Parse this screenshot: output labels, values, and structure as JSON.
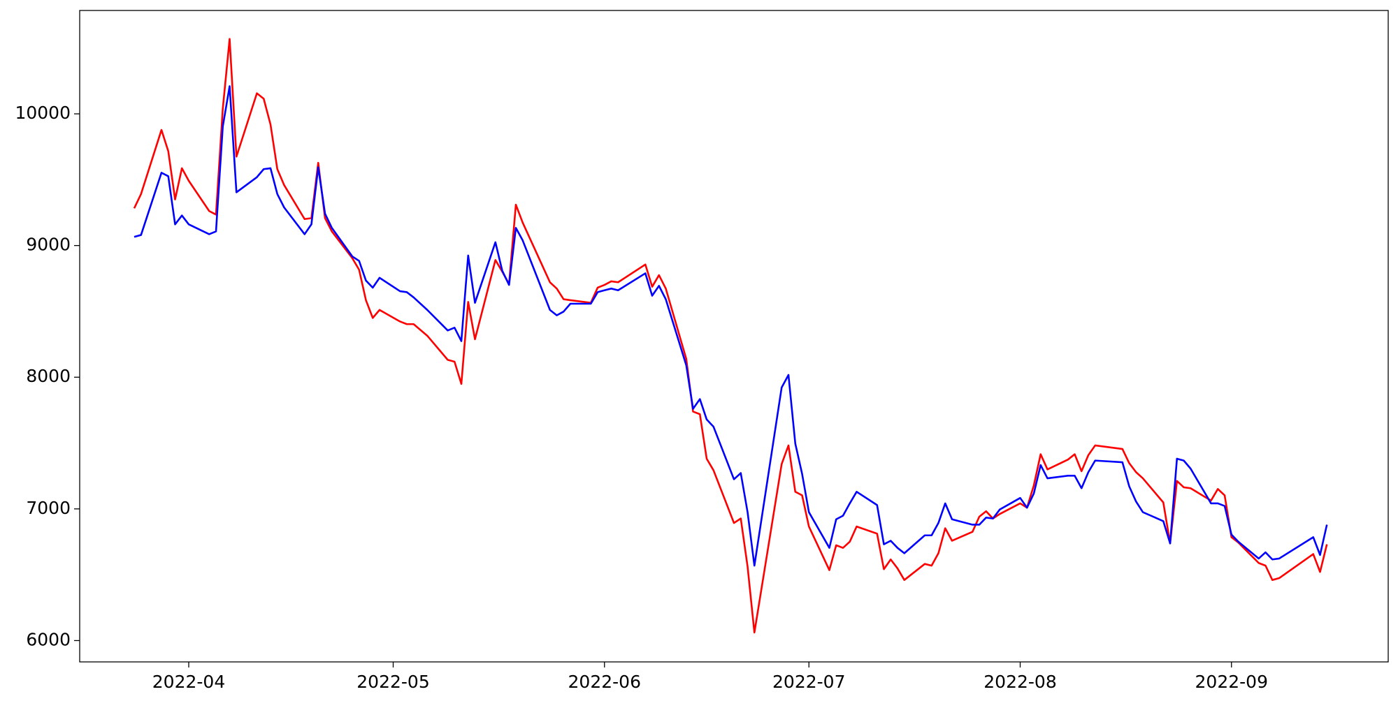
{
  "chart_data": {
    "type": "line",
    "x": [
      "2022-03-24",
      "2022-03-25",
      "2022-03-28",
      "2022-03-29",
      "2022-03-30",
      "2022-03-31",
      "2022-04-01",
      "2022-04-04",
      "2022-04-05",
      "2022-04-06",
      "2022-04-07",
      "2022-04-08",
      "2022-04-11",
      "2022-04-12",
      "2022-04-13",
      "2022-04-14",
      "2022-04-15",
      "2022-04-18",
      "2022-04-19",
      "2022-04-20",
      "2022-04-21",
      "2022-04-22",
      "2022-04-25",
      "2022-04-26",
      "2022-04-27",
      "2022-04-28",
      "2022-04-29",
      "2022-05-02",
      "2022-05-03",
      "2022-05-04",
      "2022-05-06",
      "2022-05-09",
      "2022-05-10",
      "2022-05-11",
      "2022-05-12",
      "2022-05-13",
      "2022-05-16",
      "2022-05-17",
      "2022-05-18",
      "2022-05-19",
      "2022-05-20",
      "2022-05-24",
      "2022-05-25",
      "2022-05-26",
      "2022-05-27",
      "2022-05-30",
      "2022-05-31",
      "2022-06-01",
      "2022-06-02",
      "2022-06-03",
      "2022-06-07",
      "2022-06-08",
      "2022-06-09",
      "2022-06-10",
      "2022-06-13",
      "2022-06-14",
      "2022-06-15",
      "2022-06-16",
      "2022-06-17",
      "2022-06-20",
      "2022-06-21",
      "2022-06-22",
      "2022-06-23",
      "2022-06-27",
      "2022-06-28",
      "2022-06-29",
      "2022-06-30",
      "2022-07-01",
      "2022-07-04",
      "2022-07-05",
      "2022-07-06",
      "2022-07-07",
      "2022-07-08",
      "2022-07-11",
      "2022-07-12",
      "2022-07-13",
      "2022-07-14",
      "2022-07-15",
      "2022-07-18",
      "2022-07-19",
      "2022-07-20",
      "2022-07-21",
      "2022-07-22",
      "2022-07-25",
      "2022-07-26",
      "2022-07-27",
      "2022-07-28",
      "2022-07-29",
      "2022-08-01",
      "2022-08-02",
      "2022-08-03",
      "2022-08-04",
      "2022-08-05",
      "2022-08-08",
      "2022-08-09",
      "2022-08-10",
      "2022-08-11",
      "2022-08-12",
      "2022-08-16",
      "2022-08-17",
      "2022-08-18",
      "2022-08-19",
      "2022-08-22",
      "2022-08-23",
      "2022-08-24",
      "2022-08-25",
      "2022-08-26",
      "2022-08-29",
      "2022-08-30",
      "2022-08-31",
      "2022-09-01",
      "2022-09-02",
      "2022-09-05",
      "2022-09-06",
      "2022-09-07",
      "2022-09-08",
      "2022-09-13",
      "2022-09-14",
      "2022-09-15"
    ],
    "series": [
      {
        "color": "#ff0000",
        "values": [
          9283,
          9391,
          9878,
          9716,
          9350,
          9587,
          9492,
          9262,
          9235,
          10041,
          10569,
          9675,
          10156,
          10115,
          9919,
          9580,
          9459,
          9201,
          9208,
          9628,
          9208,
          9107,
          8904,
          8816,
          8585,
          8450,
          8511,
          8423,
          8403,
          8403,
          8315,
          8132,
          8118,
          7949,
          8572,
          8288,
          8890,
          8802,
          8707,
          9310,
          9174,
          8721,
          8673,
          8592,
          8585,
          8565,
          8680,
          8701,
          8728,
          8721,
          8856,
          8687,
          8775,
          8673,
          8139,
          7739,
          7719,
          7381,
          7293,
          6893,
          6927,
          6562,
          6061,
          7340,
          7482,
          7130,
          7103,
          6866,
          6535,
          6724,
          6704,
          6751,
          6866,
          6812,
          6542,
          6616,
          6548,
          6460,
          6582,
          6569,
          6663,
          6853,
          6758,
          6826,
          6941,
          6982,
          6927,
          6961,
          7042,
          7009,
          7178,
          7415,
          7300,
          7374,
          7415,
          7286,
          7408,
          7482,
          7455,
          7347,
          7279,
          7232,
          7049,
          6738,
          7212,
          7164,
          7157,
          7063,
          7151,
          7103,
          6785,
          6745,
          6589,
          6569,
          6460,
          6474,
          6657,
          6521,
          6731
        ]
      },
      {
        "color": "#0000ff",
        "values": [
          9066,
          9080,
          9553,
          9526,
          9161,
          9228,
          9161,
          9086,
          9107,
          9905,
          10210,
          9404,
          9519,
          9580,
          9587,
          9391,
          9289,
          9086,
          9161,
          9594,
          9242,
          9134,
          8917,
          8883,
          8734,
          8680,
          8755,
          8653,
          8646,
          8606,
          8511,
          8355,
          8376,
          8274,
          8924,
          8565,
          9025,
          8809,
          8701,
          9134,
          9039,
          8511,
          8470,
          8498,
          8558,
          8558,
          8646,
          8660,
          8673,
          8660,
          8789,
          8619,
          8694,
          8592,
          8091,
          7760,
          7834,
          7679,
          7624,
          7225,
          7272,
          6975,
          6569,
          7922,
          8017,
          7496,
          7266,
          6975,
          6704,
          6921,
          6948,
          7042,
          7130,
          7029,
          6731,
          6758,
          6704,
          6663,
          6799,
          6799,
          6893,
          7042,
          6921,
          6880,
          6880,
          6934,
          6927,
          6995,
          7083,
          7009,
          7117,
          7333,
          7232,
          7252,
          7252,
          7157,
          7279,
          7367,
          7354,
          7171,
          7056,
          6975,
          6907,
          6738,
          7381,
          7367,
          7306,
          7042,
          7042,
          7022,
          6805,
          6751,
          6623,
          6670,
          6616,
          6623,
          6785,
          6650,
          6880
        ]
      }
    ],
    "xlim": [
      "2022-03-16",
      "2022-09-24"
    ],
    "xticks": [
      {
        "value": "2022-04-01",
        "label": "2022-04"
      },
      {
        "value": "2022-05-01",
        "label": "2022-05"
      },
      {
        "value": "2022-06-01",
        "label": "2022-06"
      },
      {
        "value": "2022-07-01",
        "label": "2022-07"
      },
      {
        "value": "2022-08-01",
        "label": "2022-08"
      },
      {
        "value": "2022-09-01",
        "label": "2022-09"
      }
    ],
    "ylim": [
      5838,
      10785
    ],
    "yticks": [
      6000,
      7000,
      8000,
      9000,
      10000
    ],
    "grid": false
  }
}
